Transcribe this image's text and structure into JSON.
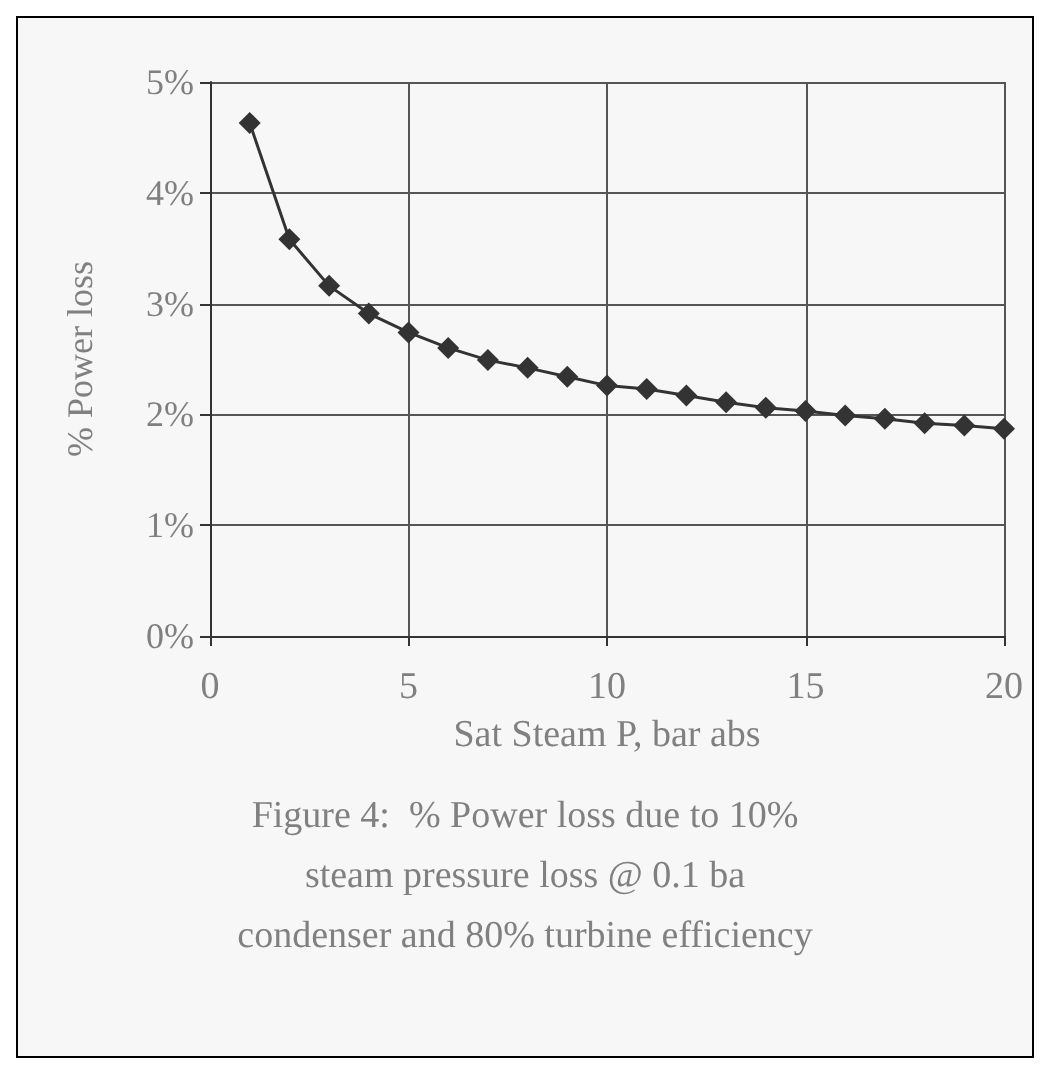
{
  "chart_data": {
    "type": "line",
    "title": "Figure 4:  % Power loss due to 10%\nsteam pressure loss @ 0.1 ba\ncondenser and 80% turbine efficiency",
    "xlabel": "Sat Steam P, bar abs",
    "ylabel": "% Power loss",
    "x": [
      1,
      2,
      3,
      4,
      5,
      6,
      7,
      8,
      9,
      10,
      11,
      12,
      13,
      14,
      15,
      16,
      17,
      18,
      19,
      20
    ],
    "series": [
      {
        "color": "#333333",
        "values": [
          4.63,
          3.58,
          3.16,
          2.91,
          2.74,
          2.6,
          2.49,
          2.42,
          2.34,
          2.26,
          2.23,
          2.17,
          2.11,
          2.06,
          2.03,
          1.99,
          1.96,
          1.92,
          1.9,
          1.87
        ]
      }
    ],
    "xlim": [
      0,
      20
    ],
    "xticks": [
      0,
      5,
      10,
      15,
      20
    ],
    "ylim": [
      0,
      5
    ],
    "yticks": [
      {
        "value": 0,
        "label": "0%"
      },
      {
        "value": 1,
        "label": "1%"
      },
      {
        "value": 2,
        "label": "2%"
      },
      {
        "value": 3,
        "label": "3%"
      },
      {
        "value": 4,
        "label": "4%"
      },
      {
        "value": 5,
        "label": "5%"
      }
    ],
    "grid": true,
    "marker": "diamond",
    "line_style": "solid"
  }
}
